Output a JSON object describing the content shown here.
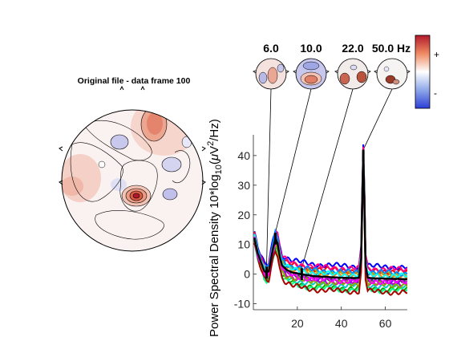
{
  "topo": {
    "title": "Original file - data frame 100"
  },
  "freq_labels": [
    "6.0",
    "10.0",
    "22.0",
    "50.0 Hz"
  ],
  "colorbar": {
    "plus": "+",
    "minus": "-",
    "colors": [
      "#d73027",
      "#f4a582",
      "#ffffff",
      "#92c5de",
      "#3b4cc0"
    ]
  },
  "chart_data": {
    "type": "line",
    "title": "",
    "xlabel": "",
    "ylabel_parts": {
      "a": "Power Spectral Density 10*log",
      "sub": "10",
      "b": "(",
      "mu": "μ",
      "c": "V",
      "sup": "2",
      "d": "/Hz)"
    },
    "xlim": [
      0,
      70
    ],
    "ylim": [
      -12,
      47
    ],
    "xticks": [
      20,
      40,
      60
    ],
    "yticks": [
      -10,
      0,
      10,
      20,
      30,
      40
    ],
    "marker_freqs": [
      6.0,
      10.0,
      22.0,
      50.0
    ],
    "mean_curve": {
      "x": [
        0,
        2,
        4,
        5,
        6,
        7,
        8,
        9,
        10,
        11,
        12,
        13,
        15,
        18,
        22,
        26,
        30,
        35,
        40,
        45,
        47,
        48,
        49,
        49.5,
        50,
        50.5,
        51,
        52,
        53,
        55,
        60,
        65,
        70
      ],
      "y": [
        14,
        7,
        3,
        1,
        0.5,
        1,
        5,
        9,
        12,
        10.5,
        6,
        3,
        1.5,
        0.5,
        0,
        -0.5,
        -0.8,
        -1,
        -1.2,
        -1.3,
        -1.3,
        -1.2,
        5,
        25,
        40,
        25,
        3,
        -1.2,
        -1.3,
        -1.4,
        -1.5,
        -1.6,
        -1.7
      ]
    },
    "series": [
      {
        "color": "#0000ff",
        "offset": 4.0
      },
      {
        "color": "#ff0000",
        "offset": 2.5
      },
      {
        "color": "#00aa00",
        "offset": -3.5
      },
      {
        "color": "#00cccc",
        "offset": -2.5
      },
      {
        "color": "#cc00cc",
        "offset": -1.5
      },
      {
        "color": "#aaaa00",
        "offset": 1.5
      },
      {
        "color": "#ff8800",
        "offset": 0.8
      },
      {
        "color": "#8800ff",
        "offset": -0.8
      },
      {
        "color": "#00ff88",
        "offset": -4.0
      },
      {
        "color": "#ff0088",
        "offset": 3.2
      },
      {
        "color": "#444444",
        "offset": -0.3
      },
      {
        "color": "#0088ff",
        "offset": 2.0
      },
      {
        "color": "#88aa00",
        "offset": -2.0
      },
      {
        "color": "#aa0000",
        "offset": -4.5
      },
      {
        "color": "#00ffff",
        "offset": 1.0
      },
      {
        "color": "#ff00ff",
        "offset": -1.0
      }
    ]
  }
}
